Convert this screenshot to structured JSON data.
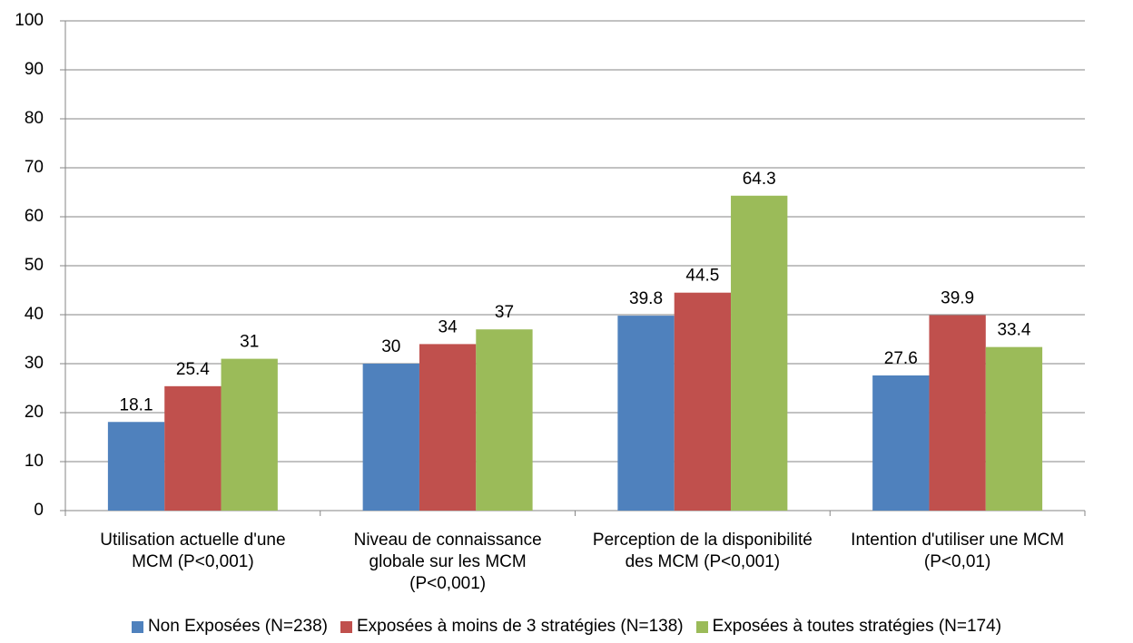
{
  "chart_data": {
    "type": "bar",
    "categories": [
      "Utilisation actuelle d'une MCM (P<0,001)",
      "Niveau de connaissance globale sur les MCM (P<0,001)",
      "Perception de la disponibilité des MCM (P<0,001)",
      "Intention d'utiliser une MCM (P<0,01)"
    ],
    "series": [
      {
        "name": "Non Exposées (N=238)",
        "color": "#4f81bd",
        "values": [
          18.1,
          30,
          39.8,
          27.6
        ]
      },
      {
        "name": "Exposées à moins de 3 stratégies (N=138)",
        "color": "#c0504d",
        "values": [
          25.4,
          34,
          44.5,
          39.9
        ]
      },
      {
        "name": "Exposées à toutes stratégies (N=174)",
        "color": "#9bbb59",
        "values": [
          31,
          37,
          64.3,
          33.4
        ]
      }
    ],
    "ylim": [
      0,
      100
    ],
    "yticks": [
      0,
      10,
      20,
      30,
      40,
      50,
      60,
      70,
      80,
      90,
      100
    ],
    "grid": true,
    "legend": "bottom"
  }
}
